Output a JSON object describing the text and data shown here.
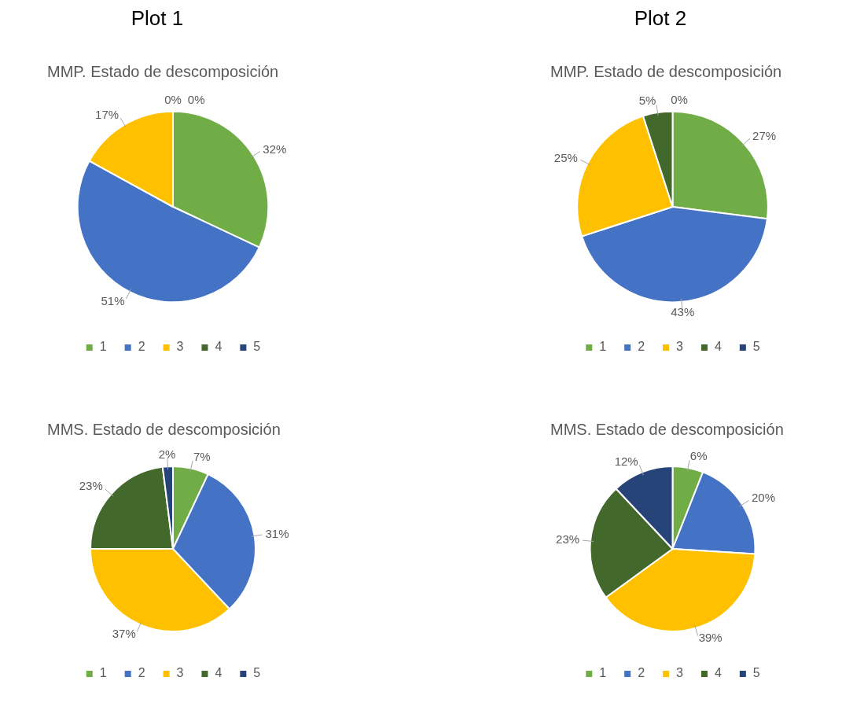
{
  "chart_data": [
    {
      "type": "pie",
      "title": "MMP. Estado de descomposición",
      "annotations": [
        "Plot 1"
      ],
      "categories": [
        "1",
        "2",
        "3",
        "4",
        "5"
      ],
      "values": [
        32,
        51,
        17,
        0,
        0
      ],
      "value_labels": [
        "32%",
        "51%",
        "17%",
        "0%",
        "0%"
      ],
      "colors": [
        "#70ad47",
        "#4472c4",
        "#ffc000",
        "#43682b",
        "#264478"
      ],
      "legend": "bottom"
    },
    {
      "type": "pie",
      "title": "MMP. Estado de descomposición",
      "annotations": [
        "Plot 2"
      ],
      "categories": [
        "1",
        "2",
        "3",
        "4",
        "5"
      ],
      "values": [
        27,
        43,
        25,
        5,
        0
      ],
      "value_labels": [
        "27%",
        "43%",
        "25%",
        "5%",
        "0%"
      ],
      "colors": [
        "#70ad47",
        "#4472c4",
        "#ffc000",
        "#43682b",
        "#264478"
      ],
      "legend": "bottom"
    },
    {
      "type": "pie",
      "title": "MMS. Estado de descomposición",
      "categories": [
        "1",
        "2",
        "3",
        "4",
        "5"
      ],
      "values": [
        7,
        31,
        37,
        23,
        2
      ],
      "value_labels": [
        "7%",
        "31%",
        "37%",
        "23%",
        "2%"
      ],
      "colors": [
        "#70ad47",
        "#4472c4",
        "#ffc000",
        "#43682b",
        "#264478"
      ],
      "legend": "bottom"
    },
    {
      "type": "pie",
      "title": "MMS. Estado de descomposición",
      "categories": [
        "1",
        "2",
        "3",
        "4",
        "5"
      ],
      "values": [
        6,
        20,
        39,
        23,
        12
      ],
      "value_labels": [
        "6%",
        "20%",
        "39%",
        "23%",
        "12%"
      ],
      "colors": [
        "#70ad47",
        "#4472c4",
        "#ffc000",
        "#43682b",
        "#264478"
      ],
      "legend": "bottom"
    }
  ]
}
